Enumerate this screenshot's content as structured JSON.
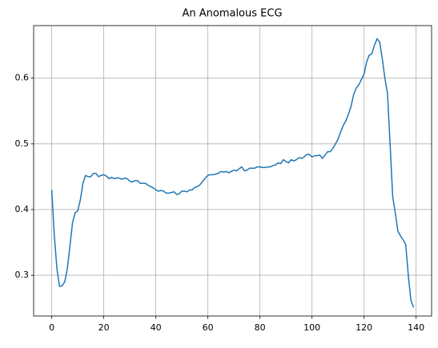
{
  "chart_data": {
    "type": "line",
    "title": "An Anomalous ECG",
    "x": [
      0,
      1,
      2,
      3,
      4,
      5,
      6,
      7,
      8,
      9,
      10,
      11,
      12,
      13,
      14,
      15,
      16,
      17,
      18,
      19,
      20,
      21,
      22,
      23,
      24,
      25,
      26,
      27,
      28,
      29,
      30,
      31,
      32,
      33,
      34,
      35,
      36,
      37,
      38,
      39,
      40,
      41,
      42,
      43,
      44,
      45,
      46,
      47,
      48,
      49,
      50,
      51,
      52,
      53,
      54,
      55,
      56,
      57,
      58,
      59,
      60,
      61,
      62,
      63,
      64,
      65,
      66,
      67,
      68,
      69,
      70,
      71,
      72,
      73,
      74,
      75,
      76,
      77,
      78,
      79,
      80,
      81,
      82,
      83,
      84,
      85,
      86,
      87,
      88,
      89,
      90,
      91,
      92,
      93,
      94,
      95,
      96,
      97,
      98,
      99,
      100,
      101,
      102,
      103,
      104,
      105,
      106,
      107,
      108,
      109,
      110,
      111,
      112,
      113,
      114,
      115,
      116,
      117,
      118,
      119,
      120,
      121,
      122,
      123,
      124,
      125,
      126,
      127,
      128,
      129,
      130,
      131,
      132,
      133,
      134,
      135,
      136,
      137,
      138,
      139
    ],
    "series": [
      {
        "color": "#1f77b4",
        "values": [
          0.43,
          0.36,
          0.31,
          0.283,
          0.284,
          0.29,
          0.31,
          0.345,
          0.38,
          0.395,
          0.398,
          0.415,
          0.44,
          0.452,
          0.45,
          0.45,
          0.455,
          0.455,
          0.45,
          0.452,
          0.453,
          0.451,
          0.447,
          0.449,
          0.447,
          0.448,
          0.448,
          0.446,
          0.448,
          0.447,
          0.443,
          0.442,
          0.444,
          0.444,
          0.44,
          0.44,
          0.44,
          0.437,
          0.435,
          0.433,
          0.43,
          0.428,
          0.429,
          0.428,
          0.425,
          0.425,
          0.426,
          0.427,
          0.423,
          0.424,
          0.428,
          0.428,
          0.427,
          0.43,
          0.43,
          0.434,
          0.435,
          0.438,
          0.443,
          0.448,
          0.452,
          0.453,
          0.453,
          0.454,
          0.455,
          0.458,
          0.457,
          0.458,
          0.456,
          0.458,
          0.46,
          0.459,
          0.462,
          0.465,
          0.459,
          0.46,
          0.463,
          0.463,
          0.463,
          0.465,
          0.465,
          0.464,
          0.464,
          0.465,
          0.465,
          0.467,
          0.468,
          0.471,
          0.47,
          0.476,
          0.473,
          0.471,
          0.476,
          0.474,
          0.476,
          0.479,
          0.478,
          0.48,
          0.484,
          0.484,
          0.48,
          0.482,
          0.482,
          0.483,
          0.478,
          0.483,
          0.488,
          0.488,
          0.493,
          0.5,
          0.507,
          0.518,
          0.528,
          0.535,
          0.545,
          0.557,
          0.575,
          0.585,
          0.59,
          0.598,
          0.606,
          0.625,
          0.635,
          0.637,
          0.65,
          0.66,
          0.655,
          0.63,
          0.6,
          0.577,
          0.5,
          0.42,
          0.395,
          0.367,
          0.36,
          0.354,
          0.347,
          0.3,
          0.262,
          0.251
        ]
      }
    ],
    "xlim": [
      -6.95,
      145.95
    ],
    "xticks": [
      0,
      20,
      40,
      60,
      80,
      100,
      120,
      140
    ],
    "ylim": [
      0.238,
      0.68
    ],
    "yticks": [
      0.3,
      0.4,
      0.5,
      0.6
    ],
    "grid": true
  }
}
